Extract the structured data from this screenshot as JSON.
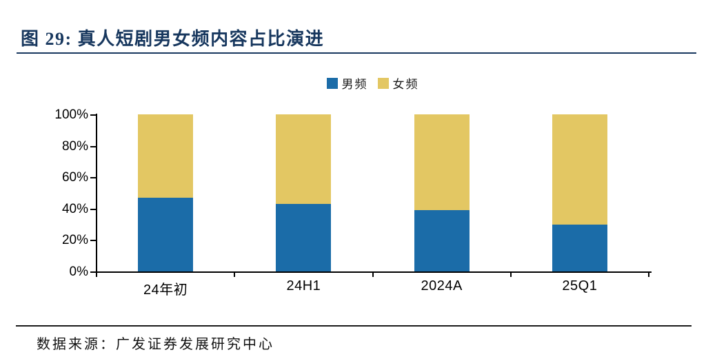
{
  "figure": {
    "title": "图 29: 真人短剧男女频内容占比演进",
    "source": "数据来源：广发证券发展研究中心"
  },
  "colors": {
    "title_navy": "#17375E",
    "male_blue": "#1B6CA8",
    "female_gold": "#E3C763",
    "axis_black": "#000000",
    "text_black": "#1A1A1A"
  },
  "chart_data": {
    "type": "bar",
    "stacked": true,
    "stacked_total": 100,
    "title": "真人短剧男女频内容占比演进",
    "categories": [
      "24年初",
      "24H1",
      "2024A",
      "25Q1"
    ],
    "series": [
      {
        "name": "男频",
        "color": "#1B6CA8",
        "values": [
          47,
          43,
          39,
          30
        ]
      },
      {
        "name": "女频",
        "color": "#E3C763",
        "values": [
          53,
          57,
          61,
          70
        ]
      }
    ],
    "y_ticks": [
      "0%",
      "20%",
      "40%",
      "60%",
      "80%",
      "100%"
    ],
    "ylim": [
      0,
      100
    ],
    "unit": "%",
    "grid": false,
    "legend_position": "top-center"
  }
}
